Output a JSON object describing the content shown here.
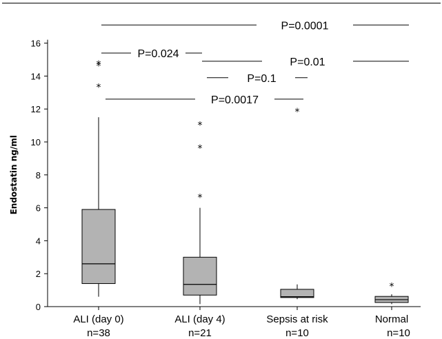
{
  "chart_data": {
    "type": "box",
    "ylabel": "Endostatin ng/ml",
    "ylim": [
      0,
      16
    ],
    "yticks": [
      0,
      2,
      4,
      6,
      8,
      10,
      12,
      14,
      16
    ],
    "categories": [
      "ALI (day 0)",
      "ALI (day 4)",
      "Sepsis at risk",
      "Normal"
    ],
    "counts": [
      "n=38",
      "n=21",
      "n=10",
      "n=10"
    ],
    "boxes": [
      {
        "whisker_low": 0.6,
        "q1": 1.4,
        "median": 2.6,
        "q3": 5.9,
        "whisker_high": 11.5,
        "outliers": [
          13.5,
          14.8,
          14.9
        ]
      },
      {
        "whisker_low": 0.15,
        "q1": 0.7,
        "median": 1.35,
        "q3": 3.0,
        "whisker_high": 6.0,
        "outliers": [
          6.8,
          9.8,
          11.2
        ]
      },
      {
        "whisker_low": 0.45,
        "q1": 0.55,
        "median": 0.6,
        "q3": 1.05,
        "whisker_high": 1.35,
        "outliers": [
          12.0
        ]
      },
      {
        "whisker_low": 0.15,
        "q1": 0.25,
        "median": 0.42,
        "q3": 0.62,
        "whisker_high": 0.75,
        "outliers": [
          1.4
        ]
      }
    ],
    "comparisons": [
      {
        "label": "P=0.0001",
        "from": 0,
        "to": 3,
        "y": 17.1
      },
      {
        "label": "P=0.024",
        "from": 0,
        "to": 1,
        "y": 15.4
      },
      {
        "label": "P=0.01",
        "from": 1,
        "to": 3,
        "y": 14.9
      },
      {
        "label": "P=0.1",
        "from": 1,
        "to": 2,
        "y": 13.9
      },
      {
        "label": "P=0.0017",
        "from": 0,
        "to": 2,
        "y": 12.6
      }
    ],
    "colors": {
      "box_fill": "#b3b3b3",
      "line": "#000000"
    }
  }
}
